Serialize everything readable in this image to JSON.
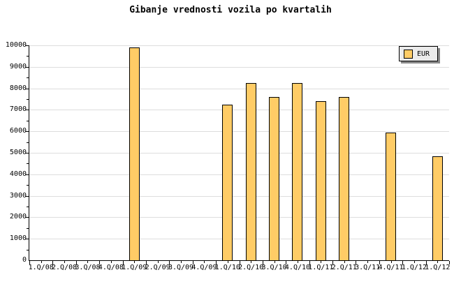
{
  "chart": {
    "title": "Gibanje vrednosti vozila po kvartalih",
    "legend": {
      "label": "EUR"
    }
  },
  "chart_data": {
    "type": "bar",
    "title": "Gibanje vrednosti vozila po kvartalih",
    "categories": [
      "1.Q/08",
      "2.Q/08",
      "3.Q/08",
      "4.Q/08",
      "1.Q/09",
      "2.Q/09",
      "3.Q/09",
      "4.Q/09",
      "1.Q/10",
      "2.Q/10",
      "3.Q/10",
      "4.Q/10",
      "1.Q/11",
      "2.Q/11",
      "3.Q/11",
      "4.Q/11",
      "1.Q/12",
      "1.Q/12"
    ],
    "series": [
      {
        "name": "EUR",
        "values": [
          0,
          0,
          0,
          0,
          9900,
          0,
          0,
          0,
          7250,
          8250,
          7600,
          8250,
          7400,
          7600,
          0,
          5950,
          0,
          4850
        ]
      }
    ],
    "xlabel": "",
    "ylabel": "",
    "ylim": [
      0,
      10000
    ],
    "ytick_major": 1000,
    "ytick_minor": 500,
    "grid": "horizontal-major",
    "legend_position": "top-right",
    "colors": {
      "bar_fill": "#FFCC66",
      "bar_border": "#000000",
      "grid": "#DDDDDD",
      "axis": "#000000",
      "legend_bg": "#EBEBEB",
      "legend_shadow": "#888888",
      "background": "#FFFFFF"
    }
  }
}
